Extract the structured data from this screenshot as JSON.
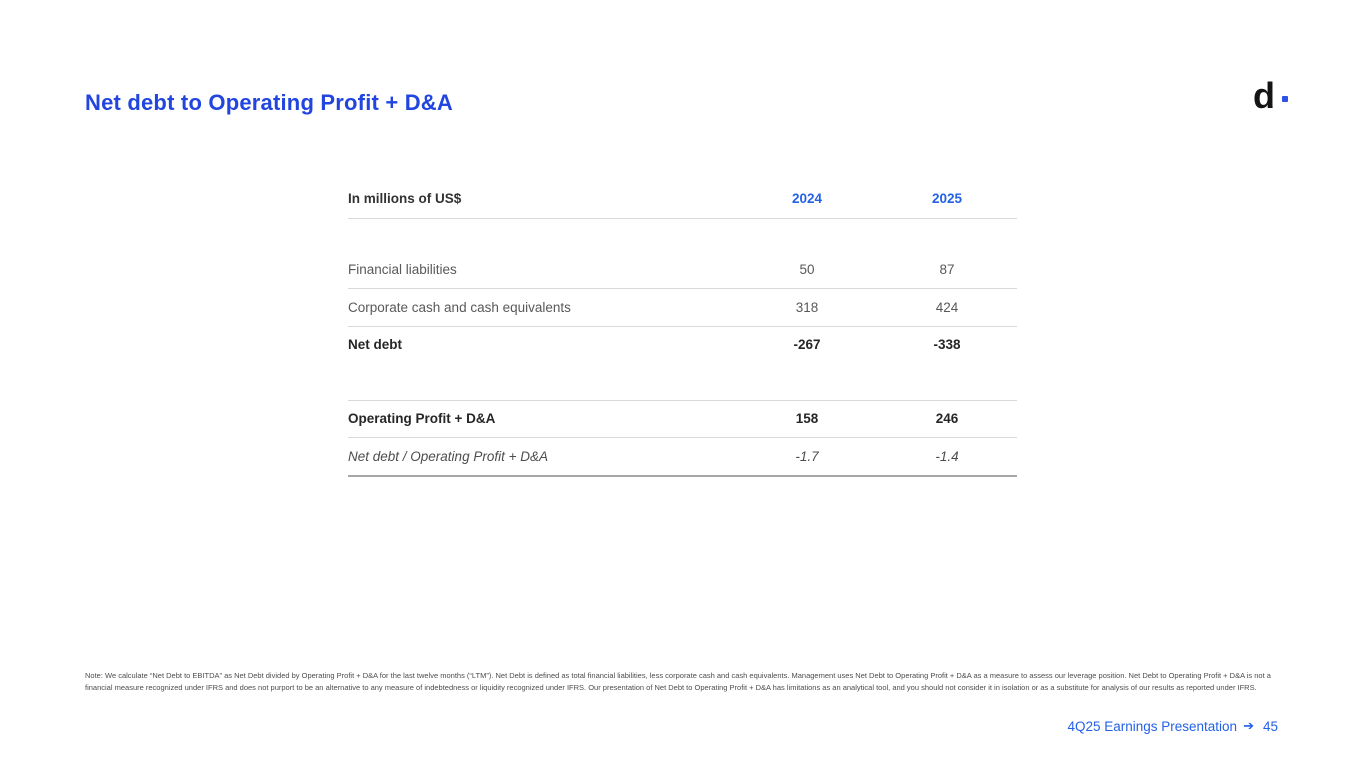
{
  "slide": {
    "title": "Net debt to Operating Profit + D&A",
    "logo": {
      "letter": "d"
    },
    "note": "Note: We calculate “Net Debt to EBITDA” as Net Debt divided by Operating Profit + D&A for the last twelve months (“LTM”). Net Debt is defined as total financial liabilities, less corporate cash and cash equivalents. Management uses Net Debt to Operating Profit + D&A as a measure to assess our leverage position. Net Debt to Operating Profit + D&A is not a financial measure recognized under IFRS and does not purport to be an alternative to any measure of indebtedness or liquidity recognized under IFRS. Our presentation of Net Debt to Operating Profit + D&A has limitations as an analytical tool, and you should not consider it in isolation or as a substitute for analysis of our results as reported under IFRS.",
    "footer": {
      "label": "4Q25 Earnings Presentation",
      "arrow": "➔",
      "page": "45"
    }
  },
  "table": {
    "header": {
      "label": "In millions of US$",
      "col_2024": "2024",
      "col_2025": "2025"
    },
    "rows": [
      {
        "label": "Financial liabilities",
        "y2024": "50",
        "y2025": "87"
      },
      {
        "label": "Corporate cash and cash equivalents",
        "y2024": "318",
        "y2025": "424"
      },
      {
        "label": "Net debt",
        "y2024": "-267",
        "y2025": "-338"
      },
      {
        "label": "Operating Profit + D&A",
        "y2024": "158",
        "y2025": "246"
      },
      {
        "label": "Net debt / Operating Profit + D&A",
        "y2024": "-1.7",
        "y2025": "-1.4"
      }
    ]
  },
  "colors": {
    "title_blue": "#2145de",
    "year_blue": "#2361e8",
    "logo_dot_blue": "#2d50e6",
    "text_dark": "#262626",
    "text_gray": "#595959",
    "rule_light": "#d9d9d9",
    "rule_dark": "#a6a6a6"
  }
}
